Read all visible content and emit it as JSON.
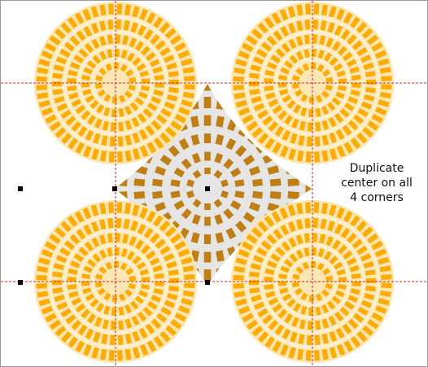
{
  "caption": {
    "lines": [
      "Duplicate",
      "center on all",
      "4 corners"
    ]
  },
  "colors": {
    "outer_stripe": "#ffab00",
    "outer_base": "#fbe6b4",
    "outer_ring_line": "#fcefcf",
    "center_stripe": "#bf7f12",
    "center_base": "#e5e5e5",
    "guide": "#e02020",
    "handle": "#000000",
    "frame": "#9a9a9a"
  },
  "rosettes": {
    "outer": [
      {
        "name": "top-left"
      },
      {
        "name": "top-right"
      },
      {
        "name": "bottom-left"
      },
      {
        "name": "bottom-right"
      }
    ],
    "center": {
      "name": "center"
    }
  }
}
